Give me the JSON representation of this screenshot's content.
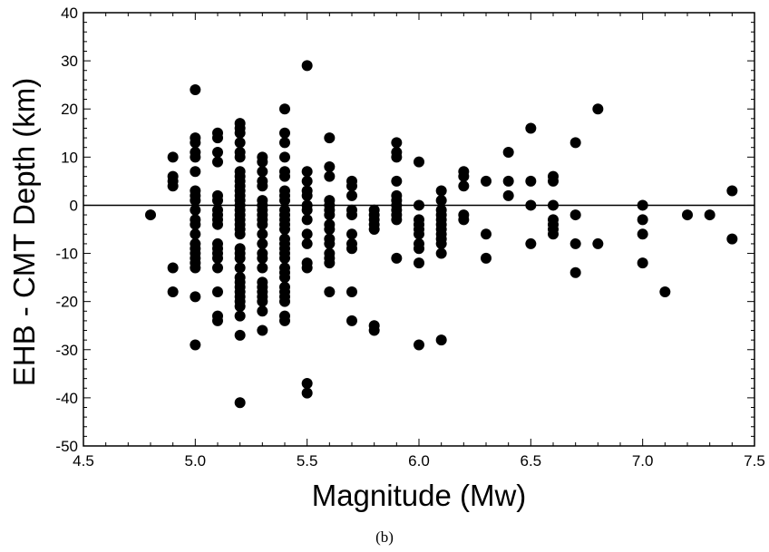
{
  "caption": "(b)",
  "chart_data": {
    "type": "scatter",
    "title": "",
    "xlabel": "Magnitude (Mw)",
    "ylabel": "EHB - CMT Depth (km)",
    "xlim": [
      4.5,
      7.5
    ],
    "ylim": [
      -50,
      40
    ],
    "xticks": [
      "4.5",
      "5.0",
      "5.5",
      "6.0",
      "6.5",
      "7.0",
      "7.5"
    ],
    "yticks": [
      "40",
      "30",
      "20",
      "10",
      "0",
      "-10",
      "-20",
      "-30",
      "-40",
      "-50"
    ],
    "reference_line_y": 0,
    "grid": false,
    "marker_color": "#000000",
    "points": [
      {
        "x": 4.8,
        "y": -2
      },
      {
        "x": 4.9,
        "y": 10
      },
      {
        "x": 4.9,
        "y": 6
      },
      {
        "x": 4.9,
        "y": 5
      },
      {
        "x": 4.9,
        "y": 4
      },
      {
        "x": 4.9,
        "y": -13
      },
      {
        "x": 4.9,
        "y": -18
      },
      {
        "x": 5.0,
        "y": 24
      },
      {
        "x": 5.0,
        "y": 14
      },
      {
        "x": 5.0,
        "y": 13
      },
      {
        "x": 5.0,
        "y": 11
      },
      {
        "x": 5.0,
        "y": 10
      },
      {
        "x": 5.0,
        "y": 7
      },
      {
        "x": 5.0,
        "y": 3
      },
      {
        "x": 5.0,
        "y": 2
      },
      {
        "x": 5.0,
        "y": 1
      },
      {
        "x": 5.0,
        "y": -1
      },
      {
        "x": 5.0,
        "y": -3
      },
      {
        "x": 5.0,
        "y": -4
      },
      {
        "x": 5.0,
        "y": -6
      },
      {
        "x": 5.0,
        "y": -8
      },
      {
        "x": 5.0,
        "y": -9
      },
      {
        "x": 5.0,
        "y": -10
      },
      {
        "x": 5.0,
        "y": -11
      },
      {
        "x": 5.0,
        "y": -12
      },
      {
        "x": 5.0,
        "y": -13
      },
      {
        "x": 5.0,
        "y": -19
      },
      {
        "x": 5.0,
        "y": -29
      },
      {
        "x": 5.1,
        "y": 15
      },
      {
        "x": 5.1,
        "y": 14
      },
      {
        "x": 5.1,
        "y": 11
      },
      {
        "x": 5.1,
        "y": 9
      },
      {
        "x": 5.1,
        "y": 2
      },
      {
        "x": 5.1,
        "y": 1
      },
      {
        "x": 5.1,
        "y": -1
      },
      {
        "x": 5.1,
        "y": -2
      },
      {
        "x": 5.1,
        "y": -3
      },
      {
        "x": 5.1,
        "y": -4
      },
      {
        "x": 5.1,
        "y": -8
      },
      {
        "x": 5.1,
        "y": -9
      },
      {
        "x": 5.1,
        "y": -10
      },
      {
        "x": 5.1,
        "y": -11
      },
      {
        "x": 5.1,
        "y": -13
      },
      {
        "x": 5.1,
        "y": -18
      },
      {
        "x": 5.1,
        "y": -23
      },
      {
        "x": 5.1,
        "y": -24
      },
      {
        "x": 5.2,
        "y": 17
      },
      {
        "x": 5.2,
        "y": 16
      },
      {
        "x": 5.2,
        "y": 15
      },
      {
        "x": 5.2,
        "y": 13
      },
      {
        "x": 5.2,
        "y": 11
      },
      {
        "x": 5.2,
        "y": 10
      },
      {
        "x": 5.2,
        "y": 7
      },
      {
        "x": 5.2,
        "y": 6
      },
      {
        "x": 5.2,
        "y": 5
      },
      {
        "x": 5.2,
        "y": 4
      },
      {
        "x": 5.2,
        "y": 3
      },
      {
        "x": 5.2,
        "y": 2
      },
      {
        "x": 5.2,
        "y": 1
      },
      {
        "x": 5.2,
        "y": 0
      },
      {
        "x": 5.2,
        "y": -1
      },
      {
        "x": 5.2,
        "y": -2
      },
      {
        "x": 5.2,
        "y": -3
      },
      {
        "x": 5.2,
        "y": -4
      },
      {
        "x": 5.2,
        "y": -5
      },
      {
        "x": 5.2,
        "y": -6
      },
      {
        "x": 5.2,
        "y": -9
      },
      {
        "x": 5.2,
        "y": -10
      },
      {
        "x": 5.2,
        "y": -11
      },
      {
        "x": 5.2,
        "y": -13
      },
      {
        "x": 5.2,
        "y": -15
      },
      {
        "x": 5.2,
        "y": -16
      },
      {
        "x": 5.2,
        "y": -17
      },
      {
        "x": 5.2,
        "y": -18
      },
      {
        "x": 5.2,
        "y": -19
      },
      {
        "x": 5.2,
        "y": -20
      },
      {
        "x": 5.2,
        "y": -21
      },
      {
        "x": 5.2,
        "y": -23
      },
      {
        "x": 5.2,
        "y": -27
      },
      {
        "x": 5.2,
        "y": -41
      },
      {
        "x": 5.3,
        "y": 10
      },
      {
        "x": 5.3,
        "y": 9
      },
      {
        "x": 5.3,
        "y": 7
      },
      {
        "x": 5.3,
        "y": 5
      },
      {
        "x": 5.3,
        "y": 4
      },
      {
        "x": 5.3,
        "y": 1
      },
      {
        "x": 5.3,
        "y": 0
      },
      {
        "x": 5.3,
        "y": -1
      },
      {
        "x": 5.3,
        "y": -2
      },
      {
        "x": 5.3,
        "y": -3
      },
      {
        "x": 5.3,
        "y": -4
      },
      {
        "x": 5.3,
        "y": -6
      },
      {
        "x": 5.3,
        "y": -8
      },
      {
        "x": 5.3,
        "y": -10
      },
      {
        "x": 5.3,
        "y": -11
      },
      {
        "x": 5.3,
        "y": -13
      },
      {
        "x": 5.3,
        "y": -16
      },
      {
        "x": 5.3,
        "y": -17
      },
      {
        "x": 5.3,
        "y": -18
      },
      {
        "x": 5.3,
        "y": -19
      },
      {
        "x": 5.3,
        "y": -20
      },
      {
        "x": 5.3,
        "y": -22
      },
      {
        "x": 5.3,
        "y": -26
      },
      {
        "x": 5.4,
        "y": 20
      },
      {
        "x": 5.4,
        "y": 15
      },
      {
        "x": 5.4,
        "y": 13
      },
      {
        "x": 5.4,
        "y": 10
      },
      {
        "x": 5.4,
        "y": 7
      },
      {
        "x": 5.4,
        "y": 6
      },
      {
        "x": 5.4,
        "y": 3
      },
      {
        "x": 5.4,
        "y": 2
      },
      {
        "x": 5.4,
        "y": 1
      },
      {
        "x": 5.4,
        "y": -1
      },
      {
        "x": 5.4,
        "y": -2
      },
      {
        "x": 5.4,
        "y": -3
      },
      {
        "x": 5.4,
        "y": -4
      },
      {
        "x": 5.4,
        "y": -5
      },
      {
        "x": 5.4,
        "y": -7
      },
      {
        "x": 5.4,
        "y": -8
      },
      {
        "x": 5.4,
        "y": -9
      },
      {
        "x": 5.4,
        "y": -10
      },
      {
        "x": 5.4,
        "y": -11
      },
      {
        "x": 5.4,
        "y": -13
      },
      {
        "x": 5.4,
        "y": -14
      },
      {
        "x": 5.4,
        "y": -15
      },
      {
        "x": 5.4,
        "y": -17
      },
      {
        "x": 5.4,
        "y": -18
      },
      {
        "x": 5.4,
        "y": -19
      },
      {
        "x": 5.4,
        "y": -20
      },
      {
        "x": 5.4,
        "y": -23
      },
      {
        "x": 5.4,
        "y": -24
      },
      {
        "x": 5.5,
        "y": 29
      },
      {
        "x": 5.5,
        "y": 7
      },
      {
        "x": 5.5,
        "y": 5
      },
      {
        "x": 5.5,
        "y": 3
      },
      {
        "x": 5.5,
        "y": 2
      },
      {
        "x": 5.5,
        "y": 0
      },
      {
        "x": 5.5,
        "y": -1
      },
      {
        "x": 5.5,
        "y": -3
      },
      {
        "x": 5.5,
        "y": -6
      },
      {
        "x": 5.5,
        "y": -8
      },
      {
        "x": 5.5,
        "y": -12
      },
      {
        "x": 5.5,
        "y": -13
      },
      {
        "x": 5.5,
        "y": -37
      },
      {
        "x": 5.5,
        "y": -39
      },
      {
        "x": 5.6,
        "y": 14
      },
      {
        "x": 5.6,
        "y": 8
      },
      {
        "x": 5.6,
        "y": 6
      },
      {
        "x": 5.6,
        "y": 1
      },
      {
        "x": 5.6,
        "y": 0
      },
      {
        "x": 5.6,
        "y": -1
      },
      {
        "x": 5.6,
        "y": -2
      },
      {
        "x": 5.6,
        "y": -4
      },
      {
        "x": 5.6,
        "y": -5
      },
      {
        "x": 5.6,
        "y": -7
      },
      {
        "x": 5.6,
        "y": -8
      },
      {
        "x": 5.6,
        "y": -10
      },
      {
        "x": 5.6,
        "y": -11
      },
      {
        "x": 5.6,
        "y": -12
      },
      {
        "x": 5.6,
        "y": -18
      },
      {
        "x": 5.7,
        "y": 5
      },
      {
        "x": 5.7,
        "y": 4
      },
      {
        "x": 5.7,
        "y": 2
      },
      {
        "x": 5.7,
        "y": -1
      },
      {
        "x": 5.7,
        "y": -2
      },
      {
        "x": 5.7,
        "y": -6
      },
      {
        "x": 5.7,
        "y": -8
      },
      {
        "x": 5.7,
        "y": -9
      },
      {
        "x": 5.7,
        "y": -18
      },
      {
        "x": 5.7,
        "y": -24
      },
      {
        "x": 5.8,
        "y": -1
      },
      {
        "x": 5.8,
        "y": -2
      },
      {
        "x": 5.8,
        "y": -3
      },
      {
        "x": 5.8,
        "y": -4
      },
      {
        "x": 5.8,
        "y": -5
      },
      {
        "x": 5.8,
        "y": -25
      },
      {
        "x": 5.8,
        "y": -26
      },
      {
        "x": 5.9,
        "y": 13
      },
      {
        "x": 5.9,
        "y": 11
      },
      {
        "x": 5.9,
        "y": 10
      },
      {
        "x": 5.9,
        "y": 5
      },
      {
        "x": 5.9,
        "y": 2
      },
      {
        "x": 5.9,
        "y": 1
      },
      {
        "x": 5.9,
        "y": 0
      },
      {
        "x": 5.9,
        "y": -1
      },
      {
        "x": 5.9,
        "y": -2
      },
      {
        "x": 5.9,
        "y": -3
      },
      {
        "x": 5.9,
        "y": -11
      },
      {
        "x": 6.0,
        "y": 9
      },
      {
        "x": 6.0,
        "y": 0
      },
      {
        "x": 6.0,
        "y": -3
      },
      {
        "x": 6.0,
        "y": -4
      },
      {
        "x": 6.0,
        "y": -5
      },
      {
        "x": 6.0,
        "y": -6
      },
      {
        "x": 6.0,
        "y": -8
      },
      {
        "x": 6.0,
        "y": -9
      },
      {
        "x": 6.0,
        "y": -12
      },
      {
        "x": 6.0,
        "y": -29
      },
      {
        "x": 6.1,
        "y": 3
      },
      {
        "x": 6.1,
        "y": 1
      },
      {
        "x": 6.1,
        "y": -1
      },
      {
        "x": 6.1,
        "y": -2
      },
      {
        "x": 6.1,
        "y": -3
      },
      {
        "x": 6.1,
        "y": -4
      },
      {
        "x": 6.1,
        "y": -5
      },
      {
        "x": 6.1,
        "y": -6
      },
      {
        "x": 6.1,
        "y": -7
      },
      {
        "x": 6.1,
        "y": -8
      },
      {
        "x": 6.1,
        "y": -10
      },
      {
        "x": 6.1,
        "y": -28
      },
      {
        "x": 6.2,
        "y": 7
      },
      {
        "x": 6.2,
        "y": 6
      },
      {
        "x": 6.2,
        "y": 4
      },
      {
        "x": 6.2,
        "y": -2
      },
      {
        "x": 6.2,
        "y": -3
      },
      {
        "x": 6.3,
        "y": 5
      },
      {
        "x": 6.3,
        "y": -6
      },
      {
        "x": 6.3,
        "y": -11
      },
      {
        "x": 6.4,
        "y": 11
      },
      {
        "x": 6.4,
        "y": 5
      },
      {
        "x": 6.4,
        "y": 2
      },
      {
        "x": 6.5,
        "y": 16
      },
      {
        "x": 6.5,
        "y": 5
      },
      {
        "x": 6.5,
        "y": 0
      },
      {
        "x": 6.5,
        "y": -8
      },
      {
        "x": 6.6,
        "y": 6
      },
      {
        "x": 6.6,
        "y": 5
      },
      {
        "x": 6.6,
        "y": 0
      },
      {
        "x": 6.6,
        "y": -3
      },
      {
        "x": 6.6,
        "y": -4
      },
      {
        "x": 6.6,
        "y": -5
      },
      {
        "x": 6.6,
        "y": -6
      },
      {
        "x": 6.7,
        "y": 13
      },
      {
        "x": 6.7,
        "y": -2
      },
      {
        "x": 6.7,
        "y": -8
      },
      {
        "x": 6.7,
        "y": -14
      },
      {
        "x": 6.8,
        "y": 20
      },
      {
        "x": 6.8,
        "y": -8
      },
      {
        "x": 7.0,
        "y": 0
      },
      {
        "x": 7.0,
        "y": -3
      },
      {
        "x": 7.0,
        "y": -6
      },
      {
        "x": 7.0,
        "y": -12
      },
      {
        "x": 7.1,
        "y": -18
      },
      {
        "x": 7.2,
        "y": -2
      },
      {
        "x": 7.3,
        "y": -2
      },
      {
        "x": 7.4,
        "y": 3
      },
      {
        "x": 7.4,
        "y": -7
      }
    ]
  }
}
